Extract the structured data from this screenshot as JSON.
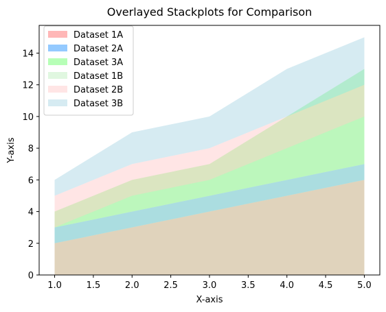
{
  "chart_data": {
    "type": "area",
    "stacked": true,
    "title": "Overlayed Stackplots for Comparison",
    "xlabel": "X-axis",
    "ylabel": "Y-axis",
    "xlim": [
      0.8,
      5.2
    ],
    "ylim": [
      0,
      15.75
    ],
    "xticks": [
      1.0,
      1.5,
      2.0,
      2.5,
      3.0,
      3.5,
      4.0,
      4.5,
      5.0
    ],
    "xtick_labels": [
      "1.0",
      "1.5",
      "2.0",
      "2.5",
      "3.0",
      "3.5",
      "4.0",
      "4.5",
      "5.0"
    ],
    "yticks": [
      0,
      2,
      4,
      6,
      8,
      10,
      12,
      14
    ],
    "ytick_labels": [
      "0",
      "2",
      "4",
      "6",
      "8",
      "10",
      "12",
      "14"
    ],
    "grid": false,
    "legend_position": "top-left",
    "x": [
      1,
      2,
      3,
      4,
      5
    ],
    "stacks": [
      {
        "series": [
          {
            "name": "Dataset 1A",
            "values": [
              2,
              3,
              4,
              5,
              6
            ],
            "color": "#ff9999",
            "opacity": 0.7
          },
          {
            "name": "Dataset 2A",
            "values": [
              1,
              1,
              1,
              1,
              1
            ],
            "color": "#66b3ff",
            "opacity": 0.7
          },
          {
            "name": "Dataset 3A",
            "values": [
              1,
              2,
              2,
              4,
              6
            ],
            "color": "#99ff99",
            "opacity": 0.7
          }
        ]
      },
      {
        "series": [
          {
            "name": "Dataset 1B",
            "values": [
              3,
              5,
              6,
              8,
              10
            ],
            "color": "#c2f0c2",
            "opacity": 0.5
          },
          {
            "name": "Dataset 2B",
            "values": [
              2,
              2,
              2,
              2,
              2
            ],
            "color": "#ffcccc",
            "opacity": 0.5
          },
          {
            "name": "Dataset 3B",
            "values": [
              1,
              2,
              2,
              3,
              3
            ],
            "color": "#add8e6",
            "opacity": 0.5
          }
        ]
      }
    ]
  }
}
